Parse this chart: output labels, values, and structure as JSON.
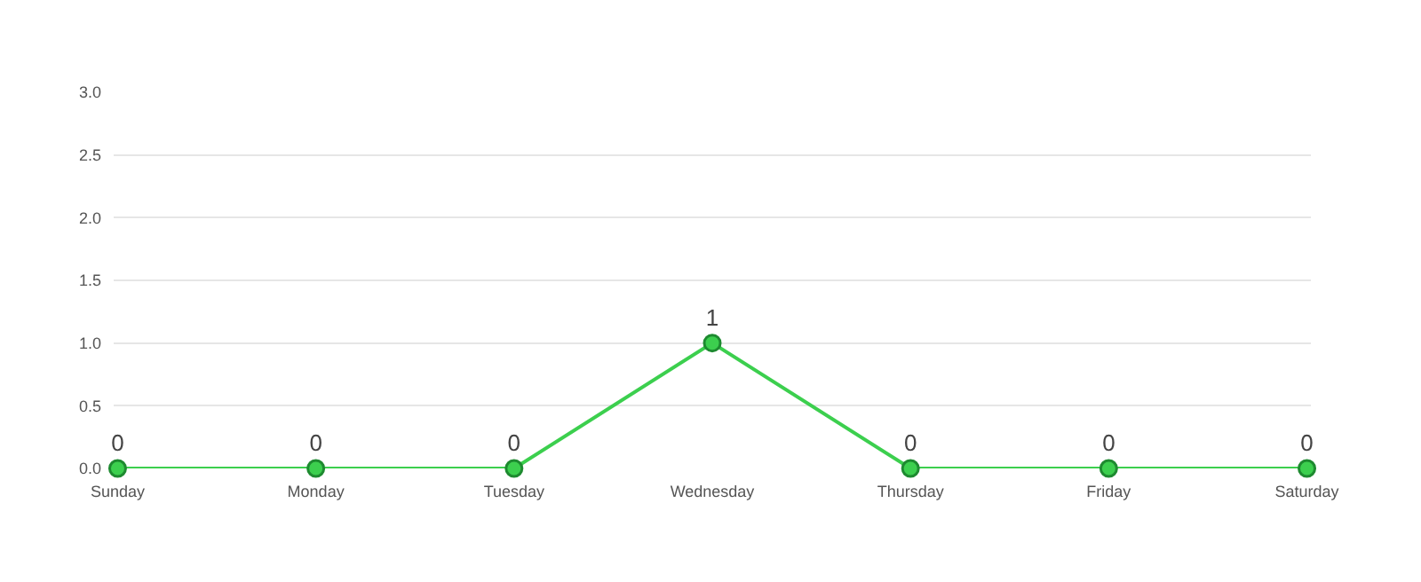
{
  "chart_data": {
    "type": "line",
    "categories": [
      "Sunday",
      "Monday",
      "Tuesday",
      "Wednesday",
      "Thursday",
      "Friday",
      "Saturday"
    ],
    "series": [
      {
        "color": "#3ccf4e",
        "values": [
          0,
          0,
          0,
          1,
          0,
          0,
          0
        ]
      }
    ],
    "ylim": [
      0,
      3
    ],
    "yticks": [
      {
        "value": 0,
        "label": "0.0"
      },
      {
        "value": 0.5,
        "label": "0.5"
      },
      {
        "value": 1,
        "label": "1.0"
      },
      {
        "value": 1.5,
        "label": "1.5"
      },
      {
        "value": 2,
        "label": "2.0"
      },
      {
        "value": 2.5,
        "label": "2.5"
      },
      {
        "value": 3,
        "label": "3.0"
      }
    ],
    "grid": "y",
    "marker": "circle",
    "line_style": "solid",
    "data_labels": true
  }
}
